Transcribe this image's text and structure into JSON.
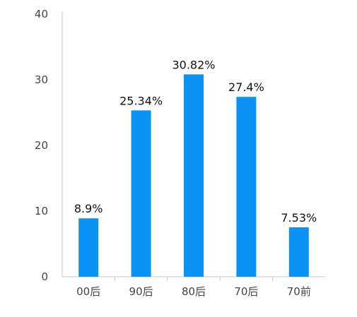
{
  "chart_data": {
    "type": "bar",
    "categories": [
      "00后",
      "90后",
      "80后",
      "70后",
      "70前"
    ],
    "values": [
      8.9,
      25.34,
      30.82,
      27.4,
      7.53
    ],
    "data_labels": [
      "8.9%",
      "25.34%",
      "30.82%",
      "27.4%",
      "7.53%"
    ],
    "title": "",
    "xlabel": "",
    "ylabel": "",
    "ylim": [
      0,
      40
    ],
    "yticks": [
      "0",
      "10",
      "20",
      "30",
      "40"
    ],
    "grid": false,
    "legend": "none",
    "colors": {
      "bar": "#0a93f5",
      "axis": "#c9d4d8"
    }
  }
}
